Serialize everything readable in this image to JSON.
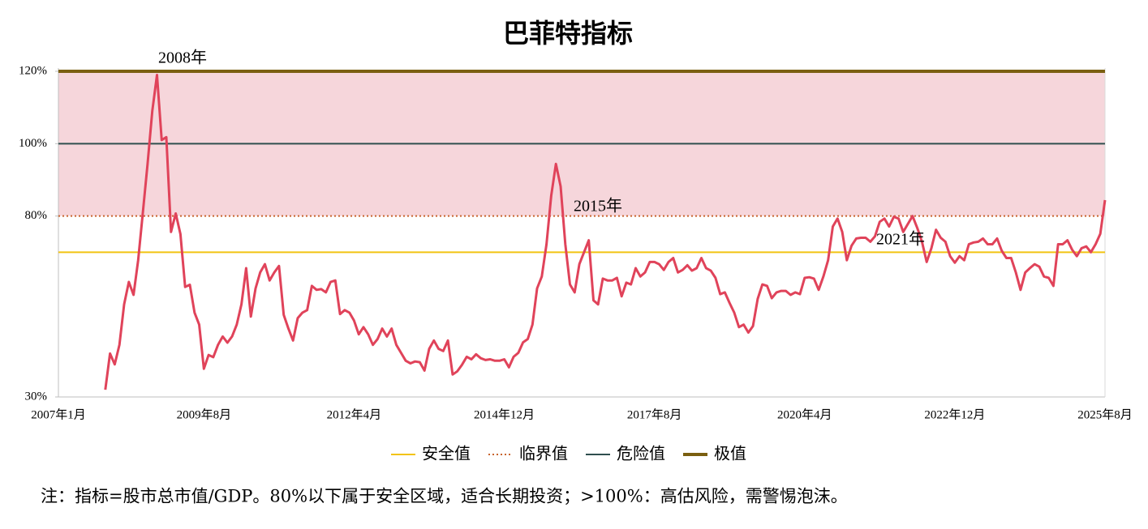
{
  "chart_data": {
    "type": "line",
    "title": "巴菲特指标",
    "note": "注：指标=股市总市值/GDP。80%以下属于安全区域，适合长期投资；>100%：高估风险，需警惕泡沫。",
    "annotations": [
      "2008年",
      "2015年",
      "2021年"
    ],
    "categories": [
      "2007年1月",
      null,
      null,
      null,
      null,
      null,
      null,
      null,
      null,
      null,
      null,
      null,
      null,
      null,
      null,
      null,
      null,
      null,
      null,
      null,
      null,
      null,
      null,
      null,
      null,
      null,
      null,
      null,
      null,
      null,
      null,
      "2009年8月",
      null,
      null,
      null,
      null,
      null,
      null,
      null,
      null,
      null,
      null,
      null,
      null,
      null,
      null,
      null,
      null,
      null,
      null,
      null,
      null,
      null,
      null,
      null,
      null,
      null,
      null,
      null,
      null,
      null,
      null,
      null,
      "2012年4月",
      null,
      null,
      null,
      null,
      null,
      null,
      null,
      null,
      null,
      null,
      null,
      null,
      null,
      null,
      null,
      null,
      null,
      null,
      null,
      null,
      null,
      null,
      null,
      null,
      null,
      null,
      null,
      null,
      null,
      null,
      null,
      "2014年12月",
      null,
      null,
      null,
      null,
      null,
      null,
      null,
      null,
      null,
      null,
      null,
      null,
      null,
      null,
      null,
      null,
      null,
      null,
      null,
      null,
      null,
      null,
      null,
      null,
      null,
      null,
      null,
      null,
      null,
      null,
      null,
      "2017年8月",
      null,
      null,
      null,
      null,
      null,
      null,
      null,
      null,
      null,
      null,
      null,
      null,
      null,
      null,
      null,
      null,
      null,
      null,
      null,
      null,
      null,
      null,
      null,
      null,
      null,
      null,
      null,
      null,
      null,
      null,
      null,
      "2020年4月",
      null,
      null,
      null,
      null,
      null,
      null,
      null,
      null,
      null,
      null,
      null,
      null,
      null,
      null,
      null,
      null,
      null,
      null,
      null,
      null,
      null,
      null,
      null,
      null,
      null,
      null,
      null,
      null,
      null,
      null,
      null,
      "2022年12月",
      null,
      null,
      null,
      null,
      null,
      null,
      null,
      null,
      null,
      null,
      null,
      null,
      null,
      null,
      null,
      null,
      null,
      null,
      null,
      null,
      null,
      null,
      null,
      null,
      null,
      null,
      null,
      null,
      null,
      null,
      null,
      "2025年8月"
    ],
    "series": [
      {
        "color": "#e0435a",
        "values": [
          null,
          null,
          null,
          null,
          null,
          null,
          null,
          null,
          null,
          null,
          32,
          42,
          39,
          44.4,
          55.6,
          61.8,
          58.2,
          67.8,
          81,
          94.4,
          109,
          119,
          101,
          101.8,
          75.6,
          80.7,
          75,
          60.4,
          61,
          53.3,
          50,
          37.8,
          41.6,
          41,
          44.4,
          46.7,
          45,
          46.7,
          50,
          55.6,
          65.6,
          52.2,
          60,
          64.4,
          66.7,
          62.2,
          64.4,
          66.2,
          52.7,
          48.9,
          45.6,
          51.8,
          53.3,
          54,
          60.7,
          59.6,
          59.8,
          58.9,
          61.8,
          62.2,
          52.9,
          54,
          53.3,
          51.1,
          47.3,
          49.3,
          47.3,
          44.4,
          46,
          48.9,
          46.7,
          48.9,
          44.4,
          42.2,
          40,
          39.3,
          39.8,
          39.6,
          37.3,
          43.3,
          45.6,
          43.3,
          42.7,
          45.6,
          36.2,
          37.1,
          38.9,
          41.1,
          40.4,
          41.8,
          40.7,
          40.2,
          40.4,
          40,
          40,
          40.4,
          38.2,
          41.1,
          42.2,
          45.1,
          46,
          50,
          60,
          63.3,
          72.2,
          85.6,
          94.4,
          88.2,
          72.2,
          61.1,
          58.9,
          66.7,
          70,
          73.3,
          56.7,
          55.6,
          62.7,
          62.2,
          62.2,
          62.9,
          57.8,
          61.6,
          61.1,
          65.6,
          63.3,
          64.4,
          67.3,
          67.3,
          66.7,
          65.1,
          67.3,
          68.4,
          64.4,
          65.1,
          66.4,
          64.9,
          65.6,
          68.4,
          65.6,
          64.9,
          62.9,
          58.4,
          58.9,
          56,
          53.3,
          49.3,
          50,
          47.8,
          49.6,
          57.1,
          61.1,
          60.7,
          57.3,
          58.9,
          59.3,
          59.3,
          58.2,
          58.9,
          58.4,
          62.9,
          63.1,
          62.7,
          59.6,
          63.3,
          67.8,
          77.1,
          79.3,
          75.6,
          67.8,
          71.8,
          73.8,
          74,
          74,
          72.9,
          74.4,
          78.4,
          79.3,
          77.1,
          79.8,
          79.3,
          75.6,
          77.8,
          80,
          76.7,
          72.9,
          67.3,
          71.1,
          76.2,
          74,
          72.9,
          68.9,
          67.1,
          68.9,
          67.8,
          72.2,
          72.7,
          72.9,
          73.8,
          72.2,
          72.2,
          73.8,
          70.4,
          68.4,
          68.4,
          64.4,
          59.6,
          64.4,
          65.6,
          66.7,
          66,
          63.3,
          62.9,
          60.7,
          72.2,
          72.2,
          73.3,
          70.7,
          68.9,
          71.1,
          71.6,
          70,
          72.2,
          75.1,
          84.4
        ]
      }
    ],
    "reference_lines": [
      {
        "name": "安全值",
        "value": 70,
        "color": "#f2c311",
        "style": "solid",
        "width": 2
      },
      {
        "name": "临界值",
        "value": 80,
        "color": "#c8642e",
        "style": "dotted",
        "width": 2
      },
      {
        "name": "危险值",
        "value": 100,
        "color": "#2f4f4f",
        "style": "solid",
        "width": 2
      },
      {
        "name": "极值",
        "value": 120,
        "color": "#7a5f10",
        "style": "solid",
        "width": 4
      }
    ],
    "band": {
      "from": 80,
      "to": 120,
      "color": "#f6d6db"
    },
    "ylim": [
      30,
      120
    ],
    "yticks": [
      {
        "value": 30,
        "label": "30%"
      },
      {
        "value": 80,
        "label": "80%"
      },
      {
        "value": 100,
        "label": "100%"
      },
      {
        "value": 120,
        "label": "120%"
      }
    ]
  }
}
